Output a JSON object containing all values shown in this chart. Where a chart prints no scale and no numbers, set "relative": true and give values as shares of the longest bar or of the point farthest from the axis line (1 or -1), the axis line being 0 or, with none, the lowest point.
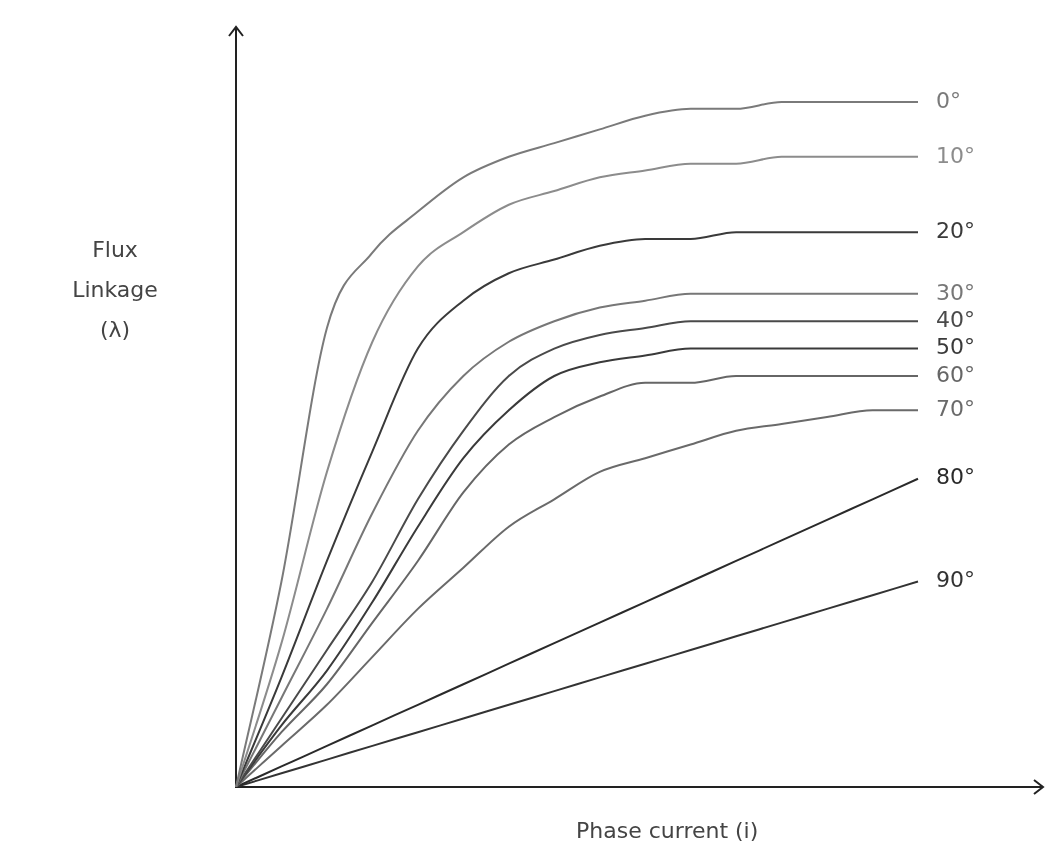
{
  "chart_data": {
    "type": "line",
    "relative": true,
    "xlabel": "Phase current (i)",
    "ylabel": "Flux Linkage (λ)",
    "categories": [
      null,
      null,
      null,
      null,
      null,
      null,
      null,
      null,
      null,
      null,
      null,
      null,
      null,
      null,
      null,
      null
    ],
    "series": [
      {
        "name": "0°",
        "color": "#7a7a7a",
        "values": [
          0,
          0.3,
          0.67,
          0.78,
          0.84,
          0.89,
          0.92,
          0.94,
          0.96,
          0.98,
          0.99,
          0.99,
          1.0,
          1.0,
          1.0,
          1.0
        ]
      },
      {
        "name": "10°",
        "color": "#8c8c8c",
        "values": [
          0,
          0.21,
          0.46,
          0.65,
          0.76,
          0.81,
          0.85,
          0.87,
          0.89,
          0.9,
          0.91,
          0.91,
          0.92,
          0.92,
          0.92,
          0.92
        ]
      },
      {
        "name": "20°",
        "color": "#3a3a3a",
        "values": [
          0,
          0.16,
          0.33,
          0.49,
          0.64,
          0.71,
          0.75,
          0.77,
          0.79,
          0.8,
          0.8,
          0.81,
          0.81,
          0.81,
          0.81,
          0.81
        ]
      },
      {
        "name": "30°",
        "color": "#777777",
        "values": [
          0,
          0.13,
          0.26,
          0.4,
          0.52,
          0.6,
          0.65,
          0.68,
          0.7,
          0.71,
          0.72,
          0.72,
          0.72,
          0.72,
          0.72,
          0.72
        ]
      },
      {
        "name": "40°",
        "color": "#4a4a4a",
        "values": [
          0,
          0.1,
          0.2,
          0.3,
          0.42,
          0.52,
          0.6,
          0.64,
          0.66,
          0.67,
          0.68,
          0.68,
          0.68,
          0.68,
          0.68,
          0.68
        ]
      },
      {
        "name": "50°",
        "color": "#3a3a3a",
        "values": [
          0,
          0.09,
          0.17,
          0.27,
          0.38,
          0.48,
          0.55,
          0.6,
          0.62,
          0.63,
          0.64,
          0.64,
          0.64,
          0.64,
          0.64,
          0.64
        ]
      },
      {
        "name": "60°",
        "color": "#666666",
        "values": [
          0,
          0.08,
          0.15,
          0.24,
          0.33,
          0.43,
          0.5,
          0.54,
          0.57,
          0.59,
          0.59,
          0.6,
          0.6,
          0.6,
          0.6,
          0.6
        ]
      },
      {
        "name": "70°",
        "color": "#6a6a6a",
        "values": [
          0,
          0.06,
          0.12,
          0.19,
          0.26,
          0.32,
          0.38,
          0.42,
          0.46,
          0.48,
          0.5,
          0.52,
          0.53,
          0.54,
          0.55,
          0.55
        ]
      },
      {
        "name": "80°",
        "color": "#2a2a2a",
        "values": [
          0,
          0.03,
          0.06,
          0.09,
          0.12,
          0.15,
          0.18,
          0.21,
          0.24,
          0.27,
          0.3,
          0.33,
          0.36,
          0.39,
          0.42,
          0.45
        ]
      },
      {
        "name": "90°",
        "color": "#333333",
        "values": [
          0,
          0.02,
          0.04,
          0.06,
          0.08,
          0.1,
          0.12,
          0.14,
          0.16,
          0.18,
          0.2,
          0.22,
          0.24,
          0.26,
          0.28,
          0.3
        ]
      }
    ]
  }
}
